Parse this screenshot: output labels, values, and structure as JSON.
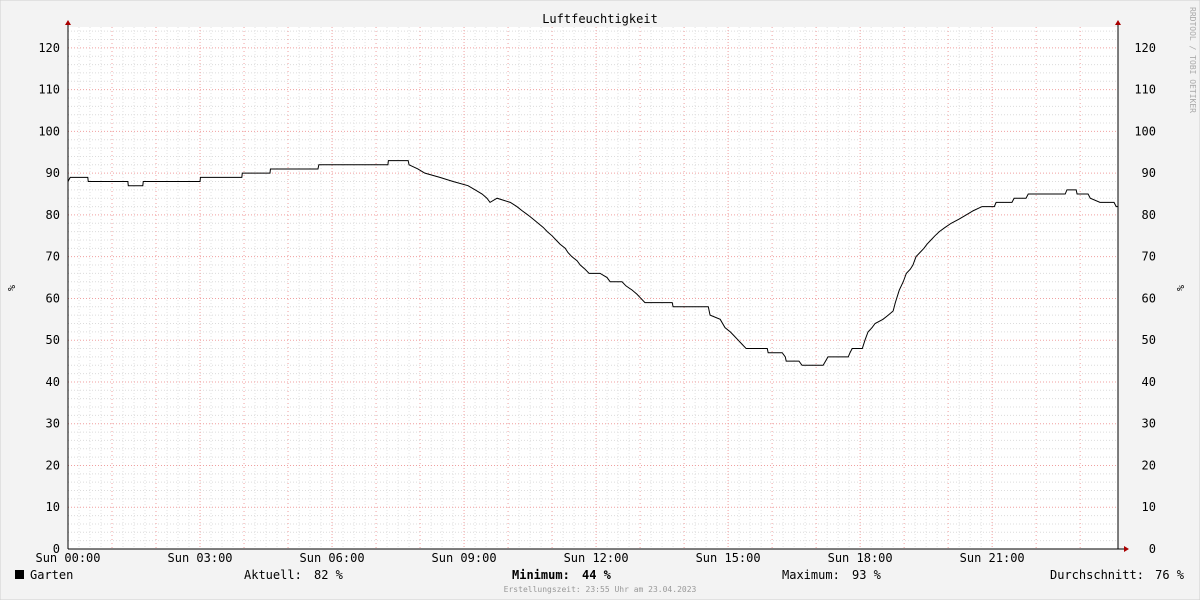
{
  "chart_data": {
    "type": "line",
    "title": "Luftfeuchtigkeit",
    "ylabel": "%",
    "xlim": [
      0,
      23.86
    ],
    "ylim": [
      0,
      125
    ],
    "xticks": [
      {
        "value": 0,
        "label": "Sun 00:00"
      },
      {
        "value": 3,
        "label": "Sun 03:00"
      },
      {
        "value": 6,
        "label": "Sun 06:00"
      },
      {
        "value": 9,
        "label": "Sun 09:00"
      },
      {
        "value": 12,
        "label": "Sun 12:00"
      },
      {
        "value": 15,
        "label": "Sun 15:00"
      },
      {
        "value": 18,
        "label": "Sun 18:00"
      },
      {
        "value": 21,
        "label": "Sun 21:00"
      }
    ],
    "yticks": [
      0,
      10,
      20,
      30,
      40,
      50,
      60,
      70,
      80,
      90,
      100,
      110,
      120
    ],
    "grid": true,
    "x": [
      0.0,
      0.05,
      0.45,
      0.46,
      1.36,
      1.37,
      1.7,
      1.71,
      3.0,
      3.01,
      3.95,
      3.96,
      4.59,
      4.6,
      5.68,
      5.7,
      7.27,
      7.28,
      7.73,
      7.75,
      7.95,
      8.11,
      8.45,
      8.75,
      9.09,
      9.25,
      9.41,
      9.52,
      9.59,
      9.75,
      10.05,
      10.2,
      10.32,
      10.45,
      10.57,
      10.8,
      10.89,
      11.0,
      11.09,
      11.18,
      11.3,
      11.36,
      11.45,
      11.57,
      11.64,
      11.75,
      11.84,
      12.09,
      12.25,
      12.32,
      12.59,
      12.68,
      12.82,
      12.93,
      13.02,
      13.11,
      13.73,
      13.75,
      14.55,
      14.59,
      14.82,
      14.93,
      15.05,
      15.14,
      15.23,
      15.32,
      15.41,
      15.89,
      15.91,
      16.23,
      16.3,
      16.32,
      16.61,
      16.68,
      17.16,
      17.27,
      17.73,
      17.77,
      17.82,
      18.05,
      18.11,
      18.18,
      18.27,
      18.34,
      18.52,
      18.64,
      18.75,
      18.8,
      18.89,
      18.98,
      19.05,
      19.14,
      19.2,
      19.27,
      19.36,
      19.45,
      19.52,
      19.61,
      19.7,
      19.8,
      19.93,
      20.07,
      20.25,
      20.41,
      20.57,
      20.77,
      21.05,
      21.09,
      21.45,
      21.5,
      21.77,
      21.82,
      22.66,
      22.7,
      22.91,
      22.93,
      23.18,
      23.23,
      23.45,
      23.77,
      23.82,
      23.86
    ],
    "series": [
      {
        "name": "Garten",
        "color": "#000000",
        "values": [
          88,
          89,
          89,
          88,
          88,
          87,
          87,
          88,
          88,
          89,
          89,
          90,
          90,
          91,
          91,
          92,
          92,
          93,
          93,
          92,
          91,
          90,
          89,
          88,
          87,
          86,
          85,
          84,
          83,
          84,
          83,
          82,
          81,
          80,
          79,
          77,
          76,
          75,
          74,
          73,
          72,
          71,
          70,
          69,
          68,
          67,
          66,
          66,
          65,
          64,
          64,
          63,
          62,
          61,
          60,
          59,
          59,
          58,
          58,
          56,
          55,
          53,
          52,
          51,
          50,
          49,
          48,
          48,
          47,
          47,
          46,
          45,
          45,
          44,
          44,
          46,
          46,
          47,
          48,
          48,
          50,
          52,
          53,
          54,
          55,
          56,
          57,
          59,
          62,
          64,
          66,
          67,
          68,
          70,
          71,
          72,
          73,
          74,
          75,
          76,
          77,
          78,
          79,
          80,
          81,
          82,
          82,
          83,
          83,
          84,
          84,
          85,
          85,
          86,
          86,
          85,
          85,
          84,
          83,
          83,
          82,
          82
        ]
      }
    ],
    "stats": [
      {
        "label": "Aktuell:",
        "text": "82 %"
      },
      {
        "label": "Minimum:",
        "text": "44 %"
      },
      {
        "label": "Maximum:",
        "text": "93 %"
      },
      {
        "label": "Durchschnitt:",
        "text": "76 %"
      }
    ],
    "footer": "Erstellungszeit: 23:55 Uhr am 23.04.2023",
    "watermark": "RRDTOOL / TOBI OETIKER"
  }
}
